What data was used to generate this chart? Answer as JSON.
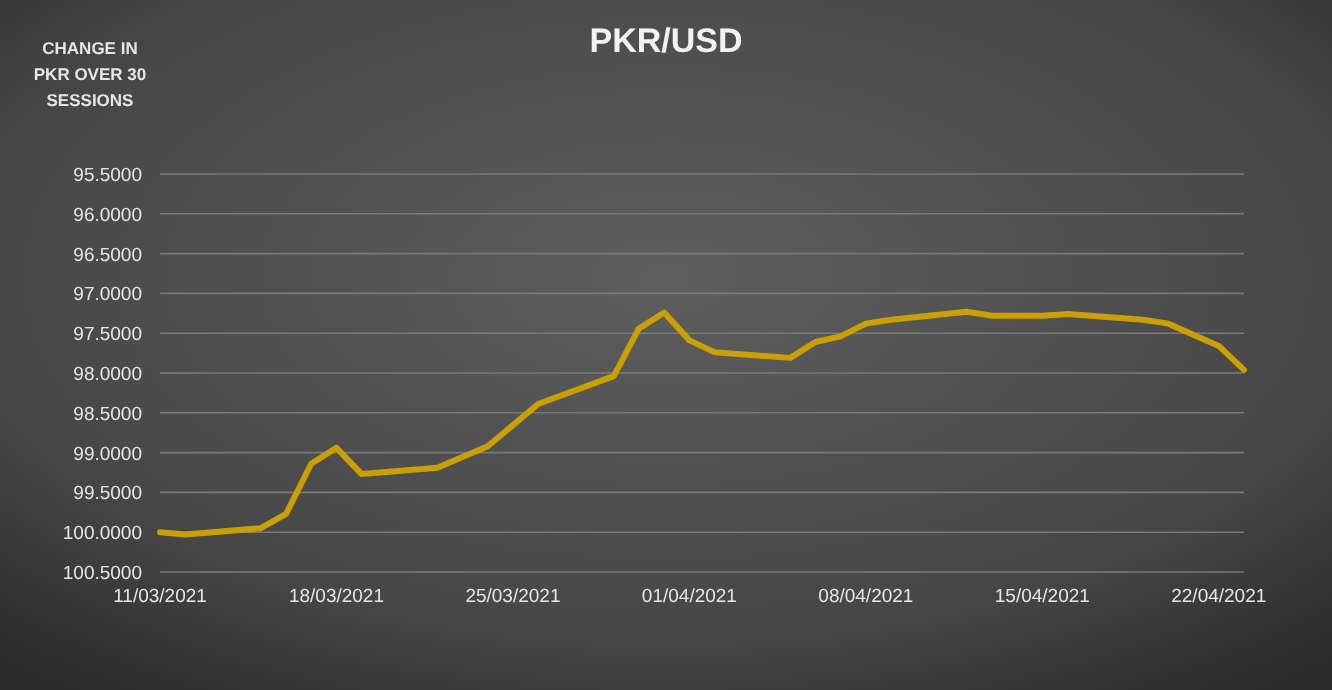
{
  "chart_data": {
    "type": "line",
    "title": "PKR/USD",
    "ylabel": "CHANGE IN PKR OVER 30 SESSIONS",
    "x": [
      "2021-03-11",
      "2021-03-12",
      "2021-03-15",
      "2021-03-16",
      "2021-03-17",
      "2021-03-18",
      "2021-03-19",
      "2021-03-22",
      "2021-03-24",
      "2021-03-26",
      "2021-03-29",
      "2021-03-30",
      "2021-03-31",
      "2021-04-01",
      "2021-04-02",
      "2021-04-05",
      "2021-04-06",
      "2021-04-07",
      "2021-04-08",
      "2021-04-09",
      "2021-04-12",
      "2021-04-13",
      "2021-04-15",
      "2021-04-16",
      "2021-04-19",
      "2021-04-20",
      "2021-04-22",
      "2021-04-23"
    ],
    "series": [
      {
        "color": "#c9a000",
        "values": [
          100.0,
          100.03,
          99.95,
          99.77,
          99.14,
          98.94,
          99.27,
          99.19,
          98.92,
          98.39,
          98.04,
          97.44,
          97.24,
          97.59,
          97.74,
          97.81,
          97.61,
          97.54,
          97.38,
          97.33,
          97.23,
          97.28,
          97.28,
          97.26,
          97.33,
          97.38,
          97.66,
          97.96
        ]
      }
    ],
    "xlim": [
      "2021-03-11",
      "2021-04-23"
    ],
    "xticks": [
      {
        "value": "2021-03-11",
        "label": "11/03/2021"
      },
      {
        "value": "2021-03-18",
        "label": "18/03/2021"
      },
      {
        "value": "2021-03-25",
        "label": "25/03/2021"
      },
      {
        "value": "2021-04-01",
        "label": "01/04/2021"
      },
      {
        "value": "2021-04-08",
        "label": "08/04/2021"
      },
      {
        "value": "2021-04-15",
        "label": "15/04/2021"
      },
      {
        "value": "2021-04-22",
        "label": "22/04/2021"
      }
    ],
    "ylim": [
      100.5,
      95.5
    ],
    "yticks": [
      {
        "value": 95.5,
        "label": "95.5000"
      },
      {
        "value": 96,
        "label": "96.0000"
      },
      {
        "value": 96.5,
        "label": "96.5000"
      },
      {
        "value": 97,
        "label": "97.0000"
      },
      {
        "value": 97.5,
        "label": "97.5000"
      },
      {
        "value": 98,
        "label": "98.0000"
      },
      {
        "value": 98.5,
        "label": "98.5000"
      },
      {
        "value": 99,
        "label": "99.0000"
      },
      {
        "value": 99.5,
        "label": "99.5000"
      },
      {
        "value": 100,
        "label": "100.0000"
      },
      {
        "value": 100.5,
        "label": "100.5000"
      }
    ],
    "grid": "y",
    "marker": "none",
    "line_style": "solid"
  }
}
